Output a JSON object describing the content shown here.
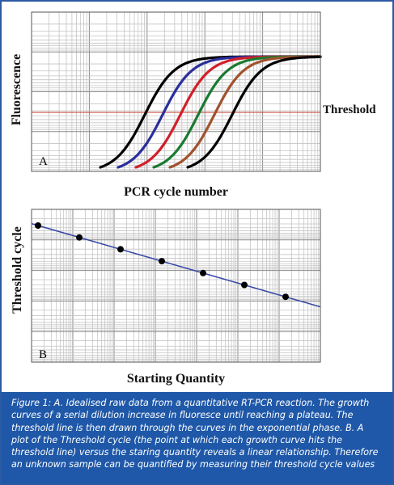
{
  "chart_data": [
    {
      "type": "line",
      "panel_label": "A",
      "xlabel": "PCR cycle number",
      "ylabel": "Fluorescence",
      "threshold_label": "Threshold",
      "grid": true,
      "colors": {
        "threshold": "#c0392b"
      },
      "series": [
        {
          "color": "#000000",
          "midpoint": 0.0
        },
        {
          "color": "#2a2f9c",
          "midpoint": 1.0
        },
        {
          "color": "#d0202a",
          "midpoint": 2.0
        },
        {
          "color": "#1a7a30",
          "midpoint": 3.0
        },
        {
          "color": "#a0522d",
          "midpoint": 4.0
        },
        {
          "color": "#000000",
          "midpoint": 5.0
        }
      ]
    },
    {
      "type": "scatter",
      "panel_label": "B",
      "xlabel": "Starting Quantity",
      "ylabel": "Threshold cycle",
      "x_scale": "log",
      "grid": true,
      "trendline": "linear",
      "colors": {
        "line": "#3a4aa8",
        "points": "#000000"
      },
      "x": [
        1,
        2,
        3,
        4,
        5,
        6,
        7
      ],
      "y": [
        7,
        6,
        5,
        4,
        3,
        2,
        1
      ]
    }
  ],
  "caption": "Figure 1: A. Idealised raw data from a quantitative RT-PCR reaction. The growth curves of a serial dilution increase in fluoresce until reaching a plateau. The threshold line is then drawn through the curves in the exponential phase. B. A plot of the Threshold cycle (the point at which each growth curve hits the threshold line) versus the staring quantity reveals a linear relationship. Therefore an unknown sample can be quantified by measuring their threshold cycle values"
}
